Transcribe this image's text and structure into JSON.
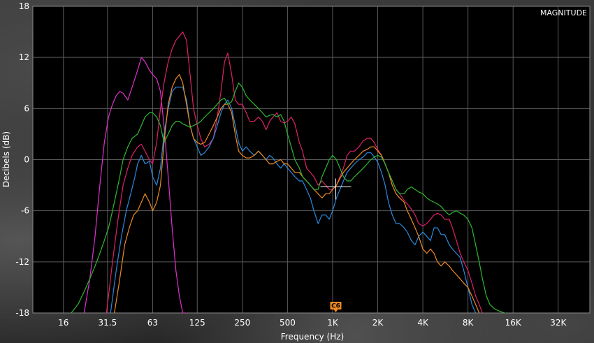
{
  "chart_data": {
    "type": "line",
    "title": "MAGNITUDE",
    "xlabel": "Frequency (Hz)",
    "ylabel": "Decibels (dB)",
    "xscale": "log",
    "xlim": [
      10,
      52000
    ],
    "ylim": [
      -18,
      18
    ],
    "xticks": [
      {
        "value": 16,
        "label": "16"
      },
      {
        "value": 31.5,
        "label": "31.5"
      },
      {
        "value": 63,
        "label": "63"
      },
      {
        "value": 125,
        "label": "125"
      },
      {
        "value": 250,
        "label": "250"
      },
      {
        "value": 500,
        "label": "500"
      },
      {
        "value": 1000,
        "label": "1K"
      },
      {
        "value": 2000,
        "label": "2K"
      },
      {
        "value": 4000,
        "label": "4K"
      },
      {
        "value": 8000,
        "label": "8K"
      },
      {
        "value": 16000,
        "label": "16K"
      },
      {
        "value": 32000,
        "label": "32K"
      }
    ],
    "yticks": [
      {
        "value": 18,
        "label": "18"
      },
      {
        "value": 12,
        "label": "12"
      },
      {
        "value": 6,
        "label": "6"
      },
      {
        "value": 0,
        "label": "0"
      },
      {
        "value": -6,
        "label": "-6"
      },
      {
        "value": -12,
        "label": "-12"
      },
      {
        "value": -18,
        "label": "-18"
      }
    ],
    "grid": true,
    "marker": {
      "label": "C6",
      "x": 1050,
      "y": -3.2
    },
    "series": [
      {
        "color": "#e030d0",
        "x": [
          22,
          24,
          26,
          28,
          30,
          32,
          34,
          36,
          38,
          40,
          43,
          46,
          50,
          53,
          56,
          60,
          63,
          67,
          71,
          75,
          80,
          85,
          90,
          95,
          100,
          106
        ],
        "y": [
          -18,
          -14,
          -9,
          -3,
          2,
          5,
          6.5,
          7.5,
          8,
          7.8,
          7,
          8.5,
          10.5,
          12,
          11.5,
          10.5,
          10,
          9.5,
          8,
          4,
          -2,
          -8,
          -13,
          -16,
          -18,
          -18
        ]
      },
      {
        "color": "#e0206a",
        "x": [
          31,
          34,
          37,
          40,
          43,
          46,
          50,
          53,
          56,
          60,
          63,
          67,
          71,
          75,
          80,
          85,
          90,
          95,
          100,
          106,
          112,
          118,
          125,
          132,
          140,
          150,
          160,
          170,
          180,
          190,
          200,
          212,
          224,
          236,
          250,
          265,
          280,
          300,
          320,
          340,
          360,
          380,
          400,
          425,
          450,
          475,
          500,
          530,
          560,
          600,
          630,
          670,
          710,
          750,
          800,
          850,
          900,
          950,
          1000,
          1060,
          1120,
          1180,
          1250,
          1320,
          1400,
          1500,
          1600,
          1700,
          1800,
          1900,
          2000,
          2120,
          2240,
          2360,
          2500,
          2650,
          2800,
          3000,
          3150,
          3350,
          3550,
          3750,
          4000,
          4250,
          4500,
          4750,
          5000,
          5300,
          5600,
          6000,
          6300,
          6700,
          7100,
          7500,
          8000,
          8500,
          9000,
          9500,
          10000
        ],
        "y": [
          -18,
          -12,
          -7,
          -3,
          -1,
          0.5,
          1.5,
          1.8,
          1,
          0,
          -0.5,
          2,
          6,
          9,
          11.5,
          13,
          14,
          14.5,
          15,
          14,
          10,
          6,
          4,
          2.5,
          1.5,
          1.8,
          2.5,
          5,
          8,
          11.5,
          12.5,
          10,
          7,
          6.5,
          6.5,
          5.5,
          4.5,
          4.5,
          5,
          4.5,
          3.5,
          4.5,
          5,
          5.5,
          4.5,
          4.3,
          4.5,
          5,
          4.2,
          2,
          1,
          -1,
          -1.5,
          -2,
          -3,
          -2.5,
          -3,
          -3.5,
          -3.5,
          -3,
          -2,
          -1,
          0.5,
          1,
          1,
          1.5,
          2.2,
          2.5,
          2.5,
          2,
          1.2,
          0.5,
          -0.5,
          -1.5,
          -2.5,
          -3.5,
          -4,
          -4.8,
          -5.2,
          -5.8,
          -6.5,
          -7.5,
          -7.8,
          -7.5,
          -7,
          -6.5,
          -6.3,
          -6.5,
          -7,
          -7,
          -8,
          -9.5,
          -11,
          -12,
          -13,
          -14.5,
          -16,
          -17,
          -18
        ]
      },
      {
        "color": "#2a8adf",
        "x": [
          33,
          36,
          39,
          42,
          45,
          48,
          50,
          53,
          56,
          60,
          63,
          67,
          71,
          75,
          80,
          85,
          90,
          95,
          100,
          106,
          112,
          118,
          125,
          132,
          140,
          150,
          160,
          170,
          180,
          190,
          200,
          212,
          224,
          236,
          250,
          265,
          280,
          300,
          320,
          340,
          360,
          380,
          400,
          425,
          450,
          475,
          500,
          530,
          560,
          600,
          630,
          670,
          710,
          750,
          800,
          850,
          900,
          950,
          1000,
          1060,
          1120,
          1180,
          1250,
          1320,
          1400,
          1500,
          1600,
          1700,
          1800,
          1900,
          2000,
          2120,
          2240,
          2360,
          2500,
          2650,
          2800,
          3000,
          3150,
          3350,
          3550,
          3750,
          4000,
          4250,
          4500,
          4750,
          5000,
          5300,
          5600,
          6000,
          6300,
          6700,
          7100,
          7500,
          8000,
          8500,
          9000
        ],
        "y": [
          -18,
          -13,
          -9,
          -6,
          -4,
          -2,
          -0.5,
          0.5,
          -0.5,
          -0.2,
          -2,
          -3,
          -1,
          3,
          6,
          8,
          8.5,
          8.5,
          8.5,
          7,
          4,
          2.5,
          1.5,
          0.5,
          0.8,
          1.5,
          2.5,
          4,
          5.5,
          6.5,
          7,
          6,
          4,
          2,
          1,
          1.5,
          1,
          0.5,
          1,
          0.5,
          0,
          0.5,
          0.2,
          -0.5,
          -1,
          -0.5,
          -1,
          -1.5,
          -2,
          -2.5,
          -2.5,
          -3.5,
          -4.5,
          -6,
          -7.5,
          -6.5,
          -6.5,
          -7,
          -6,
          -4.5,
          -3.5,
          -2.5,
          -1.5,
          -1,
          -0.5,
          0,
          0.3,
          0.8,
          0.8,
          0.3,
          -0.3,
          -1.5,
          -3,
          -5,
          -6.5,
          -7.5,
          -7.5,
          -8,
          -8.5,
          -9.5,
          -10,
          -9,
          -8.5,
          -9,
          -9.5,
          -8,
          -8,
          -8.8,
          -8.8,
          -10,
          -10.5,
          -11,
          -11.5,
          -13,
          -15,
          -17,
          -18
        ]
      },
      {
        "color": "#f08a20",
        "x": [
          35,
          38,
          41,
          44,
          47,
          50,
          53,
          56,
          60,
          63,
          67,
          71,
          75,
          80,
          85,
          90,
          95,
          100,
          106,
          112,
          118,
          125,
          132,
          140,
          150,
          160,
          170,
          180,
          190,
          200,
          212,
          224,
          236,
          250,
          265,
          280,
          300,
          320,
          340,
          360,
          380,
          400,
          425,
          450,
          475,
          500,
          530,
          560,
          600,
          630,
          670,
          710,
          750,
          800,
          850,
          900,
          950,
          1000,
          1060,
          1120,
          1180,
          1250,
          1320,
          1400,
          1500,
          1600,
          1700,
          1800,
          1900,
          2000,
          2120,
          2240,
          2360,
          2500,
          2650,
          2800,
          3000,
          3150,
          3350,
          3550,
          3750,
          4000,
          4250,
          4500,
          4750,
          5000,
          5300,
          5600,
          6000,
          6300,
          6700,
          7100,
          7500,
          8000,
          8500,
          9000,
          9500
        ],
        "y": [
          -18,
          -14,
          -10,
          -8,
          -6.5,
          -6,
          -5,
          -4,
          -5,
          -6,
          -5,
          -3,
          2,
          6.5,
          8.5,
          9.5,
          10,
          9,
          6.5,
          4,
          2.5,
          2,
          1.8,
          2,
          3,
          4,
          5,
          6,
          6.5,
          6.5,
          5.5,
          3,
          1,
          0.5,
          0.2,
          0.2,
          0.5,
          1,
          0.5,
          0,
          -0.5,
          -0.5,
          -0.2,
          0,
          -0.5,
          -0.5,
          -1,
          -1.5,
          -1.5,
          -2,
          -2.5,
          -3,
          -3.5,
          -4,
          -4.5,
          -4,
          -4,
          -3.5,
          -3,
          -2.2,
          -1.5,
          -1,
          -0.5,
          0,
          0.5,
          1,
          1.2,
          1.5,
          1.5,
          1,
          0.5,
          -0.5,
          -1.5,
          -3,
          -4,
          -4.5,
          -5,
          -6,
          -7,
          -8,
          -9,
          -10.5,
          -11,
          -10.5,
          -11,
          -12,
          -12.5,
          -12,
          -12.5,
          -13,
          -13.5,
          -14,
          -14.5,
          -15,
          -16,
          -17,
          -18
        ]
      },
      {
        "color": "#2fb830",
        "x": [
          18,
          20,
          22,
          24,
          26,
          28,
          30,
          32,
          34,
          36,
          38,
          40,
          43,
          46,
          50,
          53,
          56,
          60,
          63,
          67,
          71,
          75,
          80,
          85,
          90,
          95,
          100,
          106,
          112,
          118,
          125,
          132,
          140,
          150,
          160,
          170,
          180,
          190,
          200,
          212,
          224,
          236,
          250,
          265,
          280,
          300,
          320,
          340,
          360,
          380,
          400,
          425,
          450,
          475,
          500,
          530,
          560,
          600,
          630,
          670,
          710,
          750,
          800,
          850,
          900,
          950,
          1000,
          1060,
          1120,
          1180,
          1250,
          1320,
          1400,
          1500,
          1600,
          1700,
          1800,
          1900,
          2000,
          2120,
          2240,
          2360,
          2500,
          2650,
          2800,
          3000,
          3150,
          3350,
          3550,
          3750,
          4000,
          4250,
          4500,
          4750,
          5000,
          5300,
          5600,
          6000,
          6300,
          6700,
          7100,
          7500,
          8000,
          8500,
          9000,
          9500,
          10000,
          10600,
          11200,
          12000,
          13000,
          14000
        ],
        "y": [
          -18,
          -17,
          -15.5,
          -14,
          -12.5,
          -11,
          -9.5,
          -8,
          -6,
          -4,
          -2,
          0,
          1.5,
          2.5,
          3,
          4,
          5,
          5.5,
          5.5,
          5,
          4,
          2,
          3,
          4,
          4.5,
          4.5,
          4.2,
          4,
          3.8,
          4,
          4.2,
          4.5,
          5,
          5.5,
          6,
          6.5,
          7,
          7.2,
          6.5,
          6.8,
          8,
          9,
          8.5,
          7.5,
          7,
          6.5,
          6,
          5.5,
          5,
          5.2,
          5.3,
          5,
          5.3,
          4.5,
          3,
          1.5,
          0,
          -1,
          -2,
          -2.5,
          -3,
          -3.5,
          -3.5,
          -2,
          -1,
          0,
          0.5,
          0,
          -1,
          -2,
          -2.5,
          -2.5,
          -2,
          -1.5,
          -1,
          -0.5,
          0,
          0.3,
          0.5,
          0.3,
          -0.5,
          -1.5,
          -2.5,
          -3.5,
          -4,
          -4,
          -3.5,
          -3.2,
          -3.5,
          -3.8,
          -4,
          -4.5,
          -4.8,
          -5,
          -5.2,
          -5.5,
          -6,
          -6.5,
          -6.2,
          -6,
          -6.3,
          -6.5,
          -7,
          -8,
          -10,
          -12,
          -14,
          -16,
          -17,
          -17.5,
          -17.8,
          -18
        ]
      }
    ]
  }
}
